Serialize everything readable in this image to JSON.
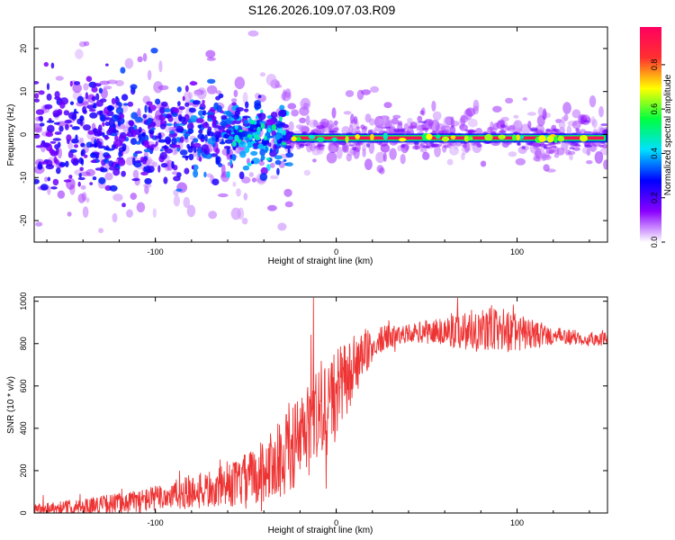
{
  "title": "S126.2026.109.07.03.R09",
  "chart_data": [
    {
      "type": "heatmap",
      "name": "spectrogram",
      "xlabel": "Height of straight line (km)",
      "ylabel": "Frequency (Hz)",
      "xlim": [
        -167,
        150
      ],
      "ylim": [
        -25,
        25
      ],
      "xticks": [
        -100,
        0,
        100
      ],
      "yticks": [
        -20,
        -10,
        0,
        10,
        20
      ],
      "grid": false,
      "colorbar": {
        "label": "Normalized spectral amplitude",
        "range": [
          0,
          0.97
        ],
        "ticks": [
          0.0,
          0.2,
          0.4,
          0.6,
          0.8
        ],
        "tick_labels": [
          "0.0",
          "0.2",
          "0.4",
          "0.6",
          "0.8"
        ],
        "colors": [
          "#ffffff",
          "#8a00ff",
          "#0000ff",
          "#00e0ff",
          "#00ff40",
          "#ffff00",
          "#ff3030",
          "#ff0060"
        ]
      },
      "features": {
        "scatter_region_x": [
          -167,
          -25
        ],
        "scatter_spread_hz": 22,
        "carrier_x": [
          -25,
          150
        ],
        "carrier_freq_hz": -0.8,
        "carrier_amplitude": 0.95
      }
    },
    {
      "type": "line",
      "name": "snr",
      "xlabel": "Height of straight line (km)",
      "ylabel": "SNR (10 * v/v)",
      "xlim": [
        -167,
        150
      ],
      "ylim": [
        0,
        1020
      ],
      "xticks": [
        -100,
        0,
        100
      ],
      "yticks": [
        0,
        200,
        400,
        600,
        800,
        1000
      ],
      "color": "#ee3333",
      "grid": false,
      "trend_x": [
        -167,
        -140,
        -110,
        -90,
        -70,
        -55,
        -45,
        -35,
        -25,
        -15,
        -5,
        5,
        15,
        25,
        40,
        60,
        80,
        95,
        110,
        130,
        150
      ],
      "trend_y": [
        20,
        30,
        55,
        85,
        110,
        140,
        175,
        230,
        300,
        390,
        500,
        620,
        740,
        820,
        850,
        860,
        870,
        860,
        840,
        830,
        820
      ],
      "noise_amp_x": [
        -167,
        -100,
        -60,
        -40,
        -20,
        -10,
        0,
        20,
        40,
        85,
        100,
        120,
        150
      ],
      "noise_amp_y": [
        25,
        60,
        100,
        150,
        220,
        280,
        220,
        70,
        40,
        120,
        90,
        40,
        30
      ]
    }
  ]
}
